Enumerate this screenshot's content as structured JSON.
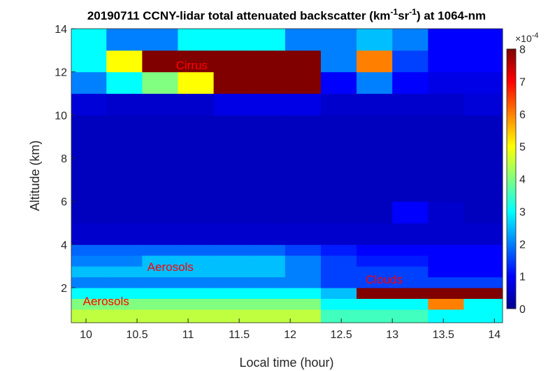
{
  "chart_data": {
    "type": "heatmap",
    "title_parts": [
      "20190711 CCNY-lidar total attenuated backscatter (km",
      "-1",
      "sr",
      "-1",
      ") at 1064-nm"
    ],
    "xlabel": "Local time (hour)",
    "ylabel": "Altitude (km)",
    "xlim": [
      9.856,
      14.08
    ],
    "ylim": [
      0.38,
      14
    ],
    "xticks": [
      10,
      10.5,
      11,
      11.5,
      12,
      12.5,
      13,
      13.5,
      14
    ],
    "yticks": [
      2,
      4,
      6,
      8,
      10,
      12,
      14
    ],
    "clim": [
      0,
      8
    ],
    "cticks": [
      0,
      1,
      2,
      3,
      4,
      5,
      6,
      7,
      8
    ],
    "colorbar_multiplier": {
      "base": "×10",
      "exponent": "-4"
    },
    "colormap": "jet",
    "x_bins": [
      9.856,
      10.2,
      10.55,
      10.9,
      11.25,
      11.6,
      11.95,
      12.3,
      12.65,
      13.0,
      13.35,
      13.7,
      14.08
    ],
    "y_bins": [
      0.38,
      1,
      1.5,
      2,
      2.5,
      3,
      3.5,
      4,
      5,
      6,
      8,
      10,
      11,
      12,
      13,
      14
    ],
    "z": [
      [
        4.5,
        4.5,
        4.5,
        4.5,
        4.5,
        4.5,
        4.5,
        3.5,
        3.5,
        3.5,
        3,
        3
      ],
      [
        4,
        4,
        4,
        4,
        4,
        4,
        4,
        3,
        3,
        3,
        6,
        3
      ],
      [
        3,
        3,
        3,
        3,
        3,
        3,
        3,
        2.5,
        8,
        8,
        8,
        8
      ],
      [
        2,
        2,
        2,
        2,
        2,
        2,
        2,
        1.5,
        1.5,
        1.5,
        1.5,
        1.5
      ],
      [
        2.5,
        2.5,
        2.5,
        2.5,
        2.5,
        2.5,
        2,
        1.5,
        1.5,
        1.5,
        1,
        1
      ],
      [
        2,
        2,
        2.5,
        2.5,
        2.5,
        2.5,
        2,
        1.5,
        1.2,
        1.2,
        1,
        1
      ],
      [
        1.8,
        1.8,
        1.8,
        1.8,
        1.8,
        1.8,
        1.5,
        1.2,
        1,
        1,
        1,
        1
      ],
      [
        0.6,
        0.6,
        0.6,
        0.6,
        0.6,
        0.6,
        0.6,
        0.6,
        0.6,
        0.6,
        0.6,
        0.6
      ],
      [
        0.5,
        0.5,
        0.5,
        0.5,
        0.5,
        0.5,
        0.5,
        0.5,
        0.5,
        1,
        0.6,
        0.5
      ],
      [
        0.5,
        0.5,
        0.5,
        0.5,
        0.5,
        0.5,
        0.5,
        0.5,
        0.5,
        0.5,
        0.5,
        0.5
      ],
      [
        0.5,
        0.5,
        0.5,
        0.5,
        0.5,
        0.5,
        0.5,
        0.5,
        0.5,
        0.5,
        0.5,
        0.5
      ],
      [
        0.7,
        0.6,
        0.6,
        0.6,
        0.8,
        0.8,
        0.8,
        0.6,
        0.6,
        0.6,
        0.6,
        0.7
      ],
      [
        2,
        3,
        4,
        5,
        8,
        8,
        8,
        1,
        2,
        1,
        0.8,
        0.8
      ],
      [
        3,
        5,
        8,
        8,
        8,
        8,
        8,
        2,
        6,
        1.5,
        1,
        1
      ],
      [
        3,
        2,
        2,
        3,
        3,
        3,
        2,
        2,
        2.5,
        2,
        1,
        1
      ]
    ],
    "annotations": [
      {
        "text": "Cirrus",
        "x": 10.88,
        "y": 12.31
      },
      {
        "text": "Aerosols",
        "x": 10.6,
        "y": 2.97
      },
      {
        "text": "Clouds",
        "x": 12.74,
        "y": 2.39
      },
      {
        "text": "Aerosols",
        "x": 9.97,
        "y": 1.38
      }
    ],
    "annotation_color": "#ff0000"
  }
}
